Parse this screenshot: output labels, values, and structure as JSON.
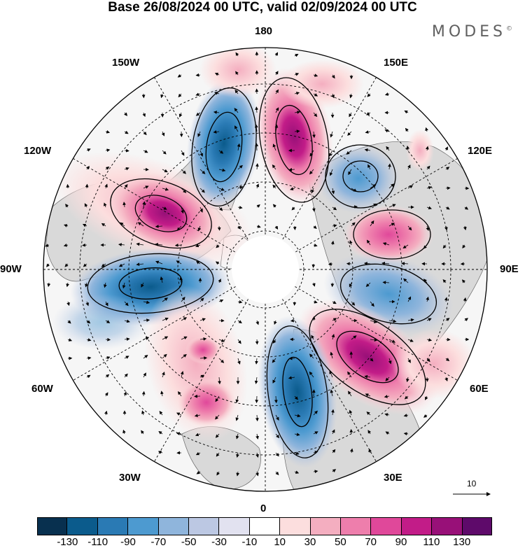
{
  "title": "Base 26/08/2024 00 UTC, valid 02/09/2024 00 UTC",
  "brand": "MODES",
  "brand_mark": "©",
  "projection": "north-polar-stereographic",
  "longitude_labels": [
    "180",
    "150E",
    "120E",
    "90E",
    "60E",
    "30E",
    "0",
    "30W",
    "60W",
    "90W",
    "120W",
    "150W"
  ],
  "reference_vector": "10",
  "colorbar": {
    "ticks": [
      "-130",
      "-110",
      "-90",
      "-70",
      "-50",
      "-30",
      "-10",
      "10",
      "30",
      "50",
      "70",
      "90",
      "110",
      "130"
    ],
    "colors": [
      "#08304f",
      "#0b5b8c",
      "#2a7ab4",
      "#4d9ad0",
      "#8fb5dc",
      "#bcc8e3",
      "#e2e2f0",
      "#ffffff",
      "#fcdede",
      "#f4aec0",
      "#ee7eac",
      "#e0489a",
      "#c21c88",
      "#981078",
      "#5e0a6a"
    ]
  },
  "colors": {
    "positive_strong": "#c21c88",
    "negative_strong": "#2a7ab4",
    "land": "#d9d9d9",
    "ocean": "#f0f0f0"
  }
}
